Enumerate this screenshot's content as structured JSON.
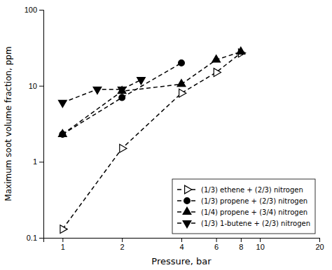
{
  "chart_data": {
    "type": "line",
    "xlabel": "Pressure, bar",
    "ylabel": "Maximum soot volume fraction, ppm",
    "log": true,
    "xlim": [
      0.8,
      20
    ],
    "ylim": [
      0.1,
      100
    ],
    "xticks": [
      1,
      2,
      4,
      6,
      8,
      10,
      20
    ],
    "yticks": [
      0.1,
      1,
      10,
      100
    ],
    "legend": "lower right",
    "line_style": "dashed",
    "series": [
      {
        "name": "(1/3) ethene + (2/3) nitrogen",
        "color": "#000000",
        "marker": "triangle-right-open",
        "x": [
          1,
          2,
          4,
          6,
          8
        ],
        "values": [
          0.13,
          1.5,
          8.0,
          15.0,
          27.0
        ]
      },
      {
        "name": "(1/3) propene + (2/3) nitrogen",
        "color": "#000000",
        "marker": "circle",
        "x": [
          1,
          2,
          4
        ],
        "values": [
          2.3,
          7.0,
          20.0
        ]
      },
      {
        "name": "(1/4) propene + (3/4) nitrogen",
        "color": "#000000",
        "marker": "triangle-up",
        "x": [
          1,
          2,
          4,
          6,
          8
        ],
        "values": [
          2.3,
          8.5,
          10.5,
          22.0,
          28.0
        ]
      },
      {
        "name": "(1/3) 1-butene + (2/3) nitrogen",
        "color": "#000000",
        "marker": "triangle-down",
        "x": [
          1,
          1.5,
          2,
          2.5
        ],
        "values": [
          6.0,
          9.0,
          9.0,
          12.0
        ]
      }
    ]
  }
}
